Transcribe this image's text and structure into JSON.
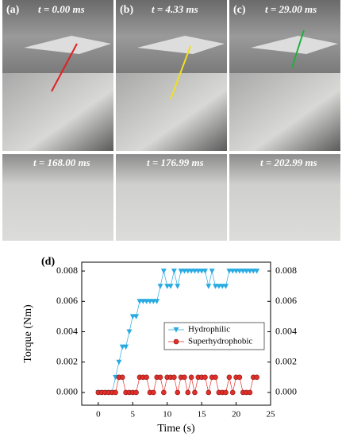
{
  "photo_panels": [
    {
      "label": "(a)",
      "top_time": "t = 0.00 ms",
      "bottom_time": "t = 168.00 ms"
    },
    {
      "label": "(b)",
      "top_time": "t = 4.33 ms",
      "bottom_time": "t = 176.99 ms"
    },
    {
      "label": "(c)",
      "top_time": "t = 29.00 ms",
      "bottom_time": "t = 202.99 ms"
    }
  ],
  "chart_data": {
    "type": "line",
    "panel_label": "(d)",
    "x_label": "Time (s)",
    "y_label": "Torque (Nm)",
    "x": [
      0,
      0.5,
      1,
      1.5,
      2,
      2.5,
      3,
      3.5,
      4,
      4.5,
      5,
      5.5,
      6,
      6.5,
      7,
      7.5,
      8,
      8.5,
      9,
      9.5,
      10,
      10.5,
      11,
      11.5,
      12,
      12.5,
      13,
      13.5,
      14,
      14.5,
      15,
      15.5,
      16,
      16.5,
      17,
      17.5,
      18,
      18.5,
      19,
      19.5,
      20,
      20.5,
      21,
      21.5,
      22,
      22.5,
      23
    ],
    "series": [
      {
        "name": "Hydrophilic",
        "color": "#29abe2",
        "marker": "triangle-down",
        "values": [
          0,
          0,
          0,
          0,
          0,
          0.001,
          0.002,
          0.003,
          0.003,
          0.004,
          0.005,
          0.005,
          0.006,
          0.006,
          0.006,
          0.006,
          0.006,
          0.006,
          0.007,
          0.008,
          0.007,
          0.007,
          0.008,
          0.007,
          0.008,
          0.008,
          0.008,
          0.008,
          0.008,
          0.008,
          0.008,
          0.008,
          0.007,
          0.008,
          0.007,
          0.007,
          0.007,
          0.007,
          0.008,
          0.008,
          0.008,
          0.008,
          0.008,
          0.008,
          0.008,
          0.008,
          0.008
        ]
      },
      {
        "name": "Superhydrophobic",
        "color": "#e0302a",
        "marker": "circle",
        "values": [
          0,
          0,
          0,
          0,
          0,
          0,
          0.001,
          0.001,
          0,
          0,
          0,
          0,
          0.001,
          0.001,
          0.001,
          0,
          0,
          0.001,
          0.001,
          0,
          0.001,
          0.001,
          0.001,
          0,
          0.001,
          0.001,
          0,
          0.001,
          0,
          0.001,
          0.001,
          0.001,
          0,
          0.001,
          0.001,
          0,
          0,
          0,
          0.001,
          0,
          0.001,
          0.001,
          0,
          0,
          0,
          0.001,
          0.001
        ]
      }
    ],
    "xlim": [
      -2.4,
      25
    ],
    "xticks": [
      0,
      5,
      10,
      15,
      20,
      25
    ],
    "ylim": [
      -0.00084,
      0.00858
    ],
    "yticks": [
      {
        "value": 0,
        "label": "0.000"
      },
      {
        "value": 0.002,
        "label": "0.002"
      },
      {
        "value": 0.004,
        "label": "0.004"
      },
      {
        "value": 0.006,
        "label": "0.006"
      },
      {
        "value": 0.008,
        "label": "0.008"
      }
    ],
    "y2lim": [
      -0.00084,
      0.00858
    ],
    "y2ticks": [
      {
        "value": 0,
        "label": "0.000"
      },
      {
        "value": 0.002,
        "label": "0.002"
      },
      {
        "value": 0.004,
        "label": "0.004"
      },
      {
        "value": 0.006,
        "label": "0.006"
      },
      {
        "value": 0.008,
        "label": "0.008"
      }
    ],
    "legend": "center-right"
  }
}
